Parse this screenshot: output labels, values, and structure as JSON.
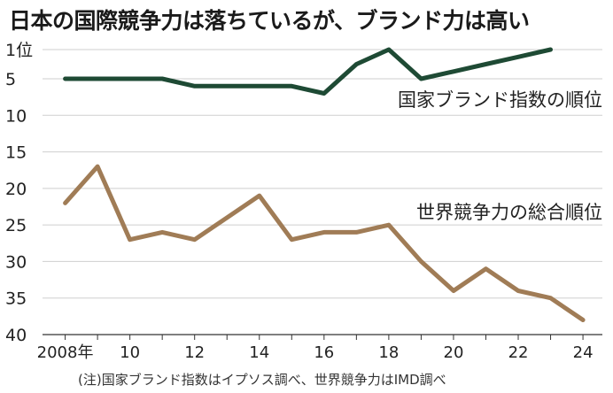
{
  "title": "日本の国際競争力は落ちているが、ブランド力は高い",
  "note": "(注)国家ブランド指数はイプソス調べ、世界競争力はIMD調べ",
  "chart_data": {
    "type": "line",
    "title": "日本の国際競争力は落ちているが、ブランド力は高い",
    "x": [
      2008,
      2009,
      2010,
      2011,
      2012,
      2013,
      2014,
      2015,
      2016,
      2017,
      2018,
      2019,
      2020,
      2021,
      2022,
      2023,
      2024
    ],
    "x_ticks": [
      {
        "value": 2008,
        "label": "2008年"
      },
      {
        "value": 2010,
        "label": "10"
      },
      {
        "value": 2012,
        "label": "12"
      },
      {
        "value": 2014,
        "label": "14"
      },
      {
        "value": 2016,
        "label": "16"
      },
      {
        "value": 2018,
        "label": "18"
      },
      {
        "value": 2020,
        "label": "20"
      },
      {
        "value": 2022,
        "label": "22"
      },
      {
        "value": 2024,
        "label": "24"
      }
    ],
    "y_ticks": [
      {
        "value": 1,
        "label": "1位"
      },
      {
        "value": 5,
        "label": "5"
      },
      {
        "value": 10,
        "label": "10"
      },
      {
        "value": 15,
        "label": "15"
      },
      {
        "value": 20,
        "label": "20"
      },
      {
        "value": 25,
        "label": "25"
      },
      {
        "value": 30,
        "label": "30"
      },
      {
        "value": 35,
        "label": "35"
      },
      {
        "value": 40,
        "label": "40"
      }
    ],
    "ylim": [
      1,
      40
    ],
    "y_inverted": true,
    "grid": "horizontal",
    "series": [
      {
        "name": "国家ブランド指数の順位",
        "color": "#1e4a34",
        "x": [
          2008,
          2009,
          2010,
          2011,
          2012,
          2013,
          2014,
          2015,
          2016,
          2017,
          2018,
          2019,
          2020,
          2021,
          2022,
          2023
        ],
        "values": [
          5,
          5,
          5,
          5,
          6,
          6,
          6,
          6,
          7,
          3,
          1,
          5,
          4,
          3,
          2,
          1
        ]
      },
      {
        "name": "世界競争力の総合順位",
        "color": "#a07c56",
        "x": [
          2008,
          2009,
          2010,
          2011,
          2012,
          2013,
          2014,
          2015,
          2016,
          2017,
          2018,
          2019,
          2020,
          2021,
          2022,
          2023,
          2024
        ],
        "values": [
          22,
          17,
          27,
          26,
          27,
          24,
          21,
          27,
          26,
          26,
          25,
          30,
          34,
          31,
          34,
          35,
          38
        ]
      }
    ]
  }
}
